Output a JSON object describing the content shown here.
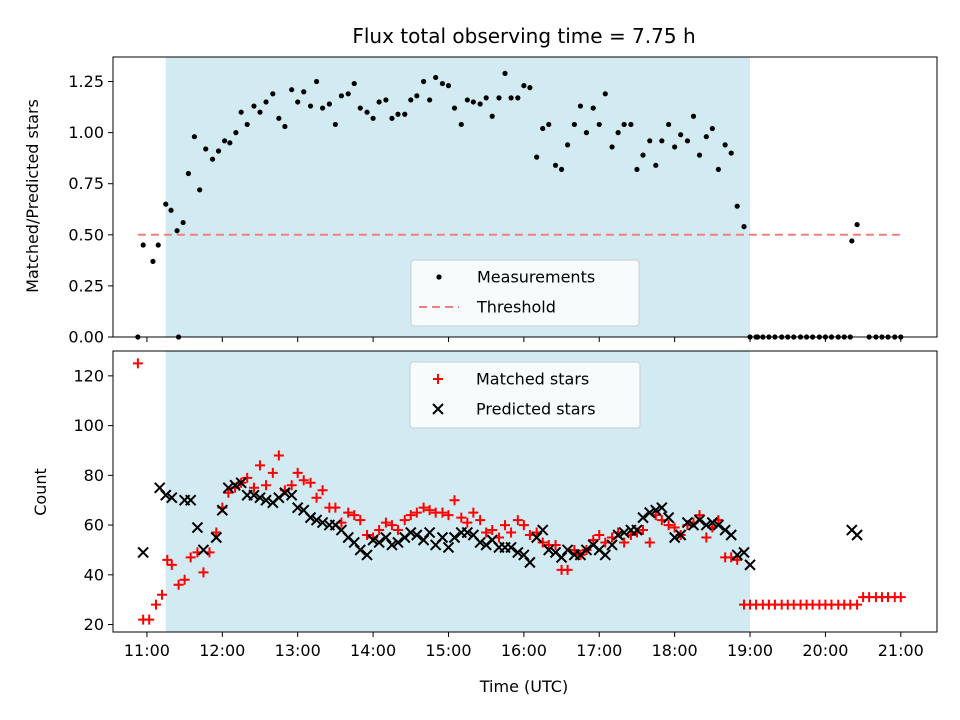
{
  "chart_data": [
    {
      "type": "scatter",
      "title": "Flux total observing time = 7.75 h",
      "xlabel": "",
      "ylabel": "Matched/Predicted stars",
      "xlim": [
        10.55,
        21.48
      ],
      "ylim": [
        0.0,
        1.37
      ],
      "yticks": [
        0.0,
        0.25,
        0.5,
        0.75,
        1.0,
        1.25
      ],
      "ytick_labels": [
        "0.00",
        "0.25",
        "0.50",
        "0.75",
        "1.00",
        "1.25"
      ],
      "shaded_interval": [
        11.25,
        19.0
      ],
      "shaded_color": "#add8e6",
      "legend_position": "lower center",
      "series": [
        {
          "name": "Measurements",
          "marker": "dot",
          "color": "#000000",
          "x": [
            10.95,
            11.08,
            11.15,
            11.25,
            11.32,
            11.4,
            11.48,
            11.55,
            11.63,
            11.7,
            11.78,
            11.87,
            11.95,
            12.03,
            12.1,
            12.18,
            12.25,
            12.33,
            12.42,
            12.5,
            12.58,
            12.67,
            12.75,
            12.83,
            12.92,
            13.0,
            13.08,
            13.17,
            13.25,
            13.33,
            13.42,
            13.5,
            13.58,
            13.67,
            13.75,
            13.83,
            13.92,
            14.0,
            14.08,
            14.17,
            14.25,
            14.33,
            14.42,
            14.5,
            14.58,
            14.67,
            14.75,
            14.83,
            14.92,
            15.0,
            15.08,
            15.17,
            15.25,
            15.33,
            15.42,
            15.5,
            15.58,
            15.67,
            15.75,
            15.83,
            15.92,
            16.0,
            16.08,
            16.17,
            16.25,
            16.33,
            16.42,
            16.5,
            16.58,
            16.67,
            16.75,
            16.83,
            16.92,
            17.0,
            17.08,
            17.17,
            17.25,
            17.33,
            17.42,
            17.5,
            17.58,
            17.67,
            17.75,
            17.83,
            17.92,
            18.0,
            18.08,
            18.17,
            18.25,
            18.33,
            18.42,
            18.5,
            18.58,
            18.67,
            18.75,
            18.83,
            18.92,
            19.0,
            19.08,
            20.35,
            20.42
          ],
          "y": [
            0.45,
            0.37,
            0.45,
            0.65,
            0.62,
            0.52,
            0.56,
            0.8,
            0.98,
            0.72,
            0.92,
            0.87,
            0.91,
            0.96,
            0.95,
            1.0,
            1.1,
            1.04,
            1.13,
            1.1,
            1.15,
            1.19,
            1.07,
            1.03,
            1.21,
            1.15,
            1.2,
            1.13,
            1.25,
            1.12,
            1.14,
            1.04,
            1.18,
            1.19,
            1.24,
            1.12,
            1.1,
            1.07,
            1.15,
            1.16,
            1.07,
            1.09,
            1.09,
            1.16,
            1.18,
            1.25,
            1.16,
            1.27,
            1.24,
            1.23,
            1.12,
            1.04,
            1.16,
            1.15,
            1.14,
            1.17,
            1.08,
            1.17,
            1.29,
            1.17,
            1.17,
            1.23,
            1.22,
            0.88,
            1.02,
            1.04,
            0.84,
            0.82,
            0.94,
            1.04,
            1.13,
            1.0,
            1.12,
            1.04,
            1.19,
            0.93,
            1.0,
            1.04,
            1.04,
            0.82,
            0.89,
            0.96,
            0.84,
            0.96,
            1.04,
            0.93,
            0.99,
            0.96,
            1.08,
            0.89,
            0.98,
            1.02,
            0.82,
            0.94,
            0.9,
            0.64,
            0.54,
            0.0,
            0.0,
            0.47,
            0.55
          ]
        },
        {
          "name": "Measurements (zero)",
          "marker": "dot",
          "color": "#000000",
          "x": [
            10.88,
            11.42,
            19.1,
            19.17,
            19.25,
            19.33,
            19.42,
            19.5,
            19.58,
            19.67,
            19.75,
            19.83,
            19.92,
            20.0,
            20.08,
            20.17,
            20.25,
            20.33,
            20.58,
            20.67,
            20.75,
            20.83,
            20.92,
            21.0
          ],
          "y": [
            0.0,
            0.0,
            0.0,
            0.0,
            0.0,
            0.0,
            0.0,
            0.0,
            0.0,
            0.0,
            0.0,
            0.0,
            0.0,
            0.0,
            0.0,
            0.0,
            0.0,
            0.0,
            0.0,
            0.0,
            0.0,
            0.0,
            0.0,
            0.0
          ]
        },
        {
          "name": "Threshold",
          "marker": "dashed-line",
          "color": "#f08080",
          "x": [
            10.88,
            21.0
          ],
          "y": [
            0.5,
            0.5
          ]
        }
      ],
      "legend": [
        "Measurements",
        "Threshold"
      ]
    },
    {
      "type": "scatter",
      "title": "",
      "xlabel": "Time (UTC)",
      "ylabel": "Count",
      "xlim": [
        10.55,
        21.48
      ],
      "ylim": [
        17.0,
        130.0
      ],
      "yticks": [
        20,
        40,
        60,
        80,
        100,
        120
      ],
      "ytick_labels": [
        "20",
        "40",
        "60",
        "80",
        "100",
        "120"
      ],
      "xticks": [
        11,
        12,
        13,
        14,
        15,
        16,
        17,
        18,
        19,
        20,
        21
      ],
      "xtick_labels": [
        "11:00",
        "12:00",
        "13:00",
        "14:00",
        "15:00",
        "16:00",
        "17:00",
        "18:00",
        "19:00",
        "20:00",
        "21:00"
      ],
      "shaded_interval": [
        11.25,
        19.0
      ],
      "shaded_color": "#add8e6",
      "legend_position": "upper center",
      "series": [
        {
          "name": "Matched stars",
          "marker": "plus",
          "color": "#ff0000",
          "x": [
            10.88,
            10.95,
            11.03,
            11.12,
            11.2,
            11.27,
            11.33,
            11.42,
            11.5,
            11.58,
            11.67,
            11.75,
            11.83,
            11.92,
            12.0,
            12.08,
            12.17,
            12.25,
            12.33,
            12.42,
            12.5,
            12.58,
            12.67,
            12.75,
            12.83,
            12.92,
            13.0,
            13.08,
            13.17,
            13.25,
            13.33,
            13.42,
            13.5,
            13.58,
            13.67,
            13.75,
            13.83,
            13.92,
            14.0,
            14.08,
            14.17,
            14.25,
            14.33,
            14.42,
            14.5,
            14.58,
            14.67,
            14.75,
            14.83,
            14.92,
            15.0,
            15.08,
            15.17,
            15.25,
            15.33,
            15.42,
            15.5,
            15.58,
            15.67,
            15.75,
            15.83,
            15.92,
            16.0,
            16.08,
            16.17,
            16.25,
            16.33,
            16.42,
            16.5,
            16.58,
            16.67,
            16.75,
            16.83,
            16.92,
            17.0,
            17.08,
            17.17,
            17.25,
            17.33,
            17.42,
            17.5,
            17.58,
            17.67,
            17.75,
            17.83,
            17.92,
            18.0,
            18.08,
            18.17,
            18.25,
            18.33,
            18.42,
            18.5,
            18.58,
            18.67,
            18.75,
            18.83,
            18.92,
            19.0,
            19.08,
            19.17,
            19.25,
            19.33,
            19.42,
            19.5,
            19.58,
            19.67,
            19.75,
            19.83,
            19.92,
            20.0,
            20.08,
            20.17,
            20.25,
            20.33,
            20.42,
            20.5,
            20.58,
            20.67,
            20.75,
            20.83,
            20.92,
            21.0
          ],
          "y": [
            125,
            22,
            22,
            28,
            32,
            46,
            44,
            36,
            38,
            47,
            49,
            41,
            49,
            57,
            67,
            73,
            75,
            77,
            79,
            75,
            84,
            76,
            81,
            88,
            74,
            76,
            81,
            78,
            77,
            71,
            74,
            67,
            67,
            61,
            65,
            64,
            62,
            56,
            55,
            58,
            61,
            60,
            58,
            62,
            64,
            65,
            67,
            66,
            65,
            65,
            64,
            70,
            63,
            61,
            65,
            62,
            57,
            58,
            55,
            60,
            57,
            62,
            60,
            56,
            57,
            53,
            52,
            52,
            42,
            42,
            50,
            48,
            50,
            54,
            56,
            53,
            55,
            57,
            53,
            56,
            57,
            58,
            53,
            64,
            62,
            60,
            59,
            56,
            60,
            61,
            64,
            55,
            59,
            62,
            47,
            47,
            46,
            28,
            28,
            28,
            28,
            28,
            28,
            28,
            28,
            28,
            28,
            28,
            28,
            28,
            28,
            28,
            28,
            28,
            28,
            28,
            31,
            31,
            31,
            31,
            31,
            31,
            31
          ]
        },
        {
          "name": "Predicted stars",
          "marker": "x",
          "color": "#000000",
          "x": [
            10.95,
            11.17,
            11.25,
            11.33,
            11.5,
            11.58,
            11.67,
            11.75,
            11.92,
            12.0,
            12.08,
            12.17,
            12.25,
            12.33,
            12.42,
            12.5,
            12.58,
            12.67,
            12.75,
            12.83,
            12.92,
            13.0,
            13.08,
            13.17,
            13.25,
            13.33,
            13.42,
            13.5,
            13.58,
            13.67,
            13.75,
            13.83,
            13.92,
            14.0,
            14.08,
            14.17,
            14.25,
            14.33,
            14.42,
            14.5,
            14.58,
            14.67,
            14.75,
            14.83,
            14.92,
            15.0,
            15.08,
            15.17,
            15.25,
            15.33,
            15.42,
            15.5,
            15.58,
            15.67,
            15.75,
            15.83,
            15.92,
            16.0,
            16.08,
            16.17,
            16.25,
            16.33,
            16.42,
            16.5,
            16.58,
            16.67,
            16.75,
            16.83,
            16.92,
            17.0,
            17.08,
            17.17,
            17.25,
            17.33,
            17.42,
            17.5,
            17.58,
            17.67,
            17.75,
            17.83,
            17.92,
            18.0,
            18.08,
            18.17,
            18.25,
            18.33,
            18.42,
            18.5,
            18.58,
            18.67,
            18.75,
            18.83,
            18.92,
            19.0,
            20.35,
            20.42
          ],
          "y": [
            49,
            75,
            72,
            71,
            70,
            70,
            59,
            50,
            55,
            66,
            75,
            76,
            77,
            72,
            72,
            71,
            70,
            69,
            71,
            73,
            72,
            67,
            66,
            63,
            62,
            61,
            60,
            60,
            58,
            55,
            53,
            50,
            48,
            54,
            53,
            55,
            52,
            53,
            55,
            57,
            56,
            54,
            57,
            52,
            55,
            51,
            55,
            57,
            57,
            56,
            53,
            52,
            54,
            51,
            51,
            51,
            49,
            48,
            45,
            55,
            58,
            50,
            49,
            47,
            50,
            48,
            48,
            50,
            52,
            50,
            48,
            52,
            56,
            57,
            58,
            58,
            63,
            65,
            66,
            67,
            63,
            55,
            56,
            61,
            60,
            62,
            60,
            61,
            60,
            58,
            56,
            48,
            49,
            44,
            58,
            56
          ]
        }
      ],
      "legend": [
        "Matched stars",
        "Predicted stars"
      ]
    }
  ]
}
